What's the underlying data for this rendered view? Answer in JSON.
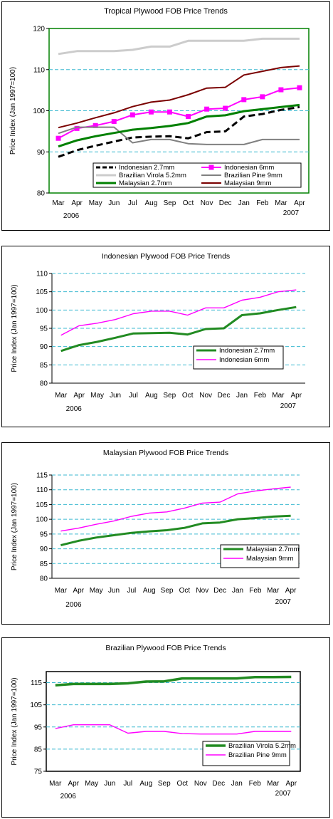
{
  "months": [
    "Mar",
    "Apr",
    "May",
    "Jun",
    "Jul",
    "Aug",
    "Sep",
    "Oct",
    "Nov",
    "Dec",
    "Jan",
    "Feb",
    "Mar",
    "Apr"
  ],
  "year_start": "2006",
  "year_end": "2007",
  "ylabel": "Price Index (Jan 1997=100)",
  "chart_data": [
    {
      "type": "line",
      "title": "Tropical Plywood FOB Price Trends",
      "ylabel": "Price Index (Jan 1997=100)",
      "ylim": [
        80,
        120
      ],
      "yticks": [
        80,
        90,
        100,
        110,
        120
      ],
      "grid": true,
      "legend": "bottom-center",
      "series": [
        {
          "name": "Indonesian 2.7mm",
          "color": "#000000",
          "values": [
            88.8,
            90.4,
            91.5,
            92.5,
            93.5,
            93.7,
            93.8,
            93.3,
            94.8,
            95.0,
            98.6,
            99.2,
            100.2,
            100.9
          ]
        },
        {
          "name": "Indonesian 6mm",
          "color": "#ff00ff",
          "values": [
            93.3,
            95.7,
            96.4,
            97.4,
            99.0,
            99.7,
            99.7,
            98.6,
            100.4,
            100.6,
            102.7,
            103.4,
            105.1,
            105.6
          ]
        },
        {
          "name": "Brazilian Virola 5.2mm",
          "color": "#cccccc",
          "values": [
            113.8,
            114.5,
            114.5,
            114.5,
            114.8,
            115.6,
            115.6,
            117.0,
            117.0,
            117.0,
            117.0,
            117.5,
            117.5,
            117.5
          ]
        },
        {
          "name": "Brazilian Pine 9mm",
          "color": "#808080",
          "values": [
            94.5,
            96.0,
            96.0,
            96.0,
            92.2,
            93.0,
            93.0,
            92.0,
            91.8,
            91.8,
            91.8,
            93.0,
            93.0,
            93.0
          ]
        },
        {
          "name": "Malaysian 2.7mm",
          "color": "#008000",
          "values": [
            91.3,
            92.8,
            93.8,
            94.6,
            95.4,
            95.8,
            96.3,
            97.0,
            98.6,
            98.9,
            99.9,
            100.4,
            100.9,
            101.4
          ]
        },
        {
          "name": "Malaysian 9mm",
          "color": "#7a0000",
          "values": [
            95.9,
            97.0,
            98.3,
            99.5,
            101.0,
            102.1,
            102.6,
            103.9,
            105.5,
            105.7,
            108.7,
            109.6,
            110.5,
            110.9
          ]
        }
      ]
    },
    {
      "type": "line",
      "title": "Indonesian Plywood FOB Price Trends",
      "ylabel": "Price Index (Jan 1997=100)",
      "ylim": [
        80,
        110
      ],
      "yticks": [
        80,
        85,
        90,
        95,
        100,
        105,
        110
      ],
      "grid": true,
      "legend": "bottom-right",
      "series": [
        {
          "name": "Indonesian 2.7mm",
          "color": "#228b22",
          "values": [
            88.8,
            90.4,
            91.3,
            92.4,
            93.6,
            93.7,
            93.8,
            93.3,
            94.8,
            95.0,
            98.6,
            99.1,
            100.0,
            100.8
          ]
        },
        {
          "name": "Indonesian 6mm",
          "color": "#ff00ff",
          "values": [
            93.1,
            95.7,
            96.4,
            97.4,
            99.0,
            99.7,
            99.7,
            98.6,
            100.6,
            100.6,
            102.7,
            103.5,
            105.0,
            105.5
          ]
        }
      ]
    },
    {
      "type": "line",
      "title": "Malaysian Plywood FOB Price Trends",
      "ylabel": "Price Index (Jan 1997=100)",
      "ylim": [
        80,
        115
      ],
      "yticks": [
        80,
        85,
        90,
        95,
        100,
        105,
        110,
        115
      ],
      "grid": true,
      "legend": "bottom-right",
      "series": [
        {
          "name": "Malaysian 2.7mm",
          "color": "#228b22",
          "values": [
            91.2,
            92.7,
            93.8,
            94.6,
            95.4,
            95.9,
            96.3,
            97.1,
            98.6,
            98.9,
            100.0,
            100.4,
            100.9,
            101.2
          ]
        },
        {
          "name": "Malaysian 9mm",
          "color": "#ff00ff",
          "values": [
            96.0,
            97.0,
            98.3,
            99.4,
            101.0,
            102.1,
            102.5,
            103.8,
            105.5,
            105.8,
            108.6,
            109.6,
            110.3,
            110.9
          ]
        }
      ]
    },
    {
      "type": "line",
      "title": "Brazilian Plywood FOB Price Trends",
      "ylabel": "Price Index (Jan 1997=100)",
      "ylim": [
        75,
        120
      ],
      "yticks": [
        75,
        85,
        95,
        105,
        115
      ],
      "grid": true,
      "legend": "bottom-right",
      "series": [
        {
          "name": "Brazilian Virola 5.2mm",
          "color": "#228b22",
          "values": [
            113.8,
            114.4,
            114.4,
            114.4,
            114.7,
            115.5,
            115.6,
            116.9,
            116.9,
            116.9,
            116.9,
            117.5,
            117.5,
            117.6
          ]
        },
        {
          "name": "Brazilian Pine 9mm",
          "color": "#ff00ff",
          "values": [
            94.3,
            96.0,
            96.0,
            96.0,
            92.2,
            93.0,
            93.0,
            92.0,
            91.8,
            91.8,
            91.8,
            93.0,
            93.0,
            93.0
          ]
        }
      ]
    }
  ]
}
